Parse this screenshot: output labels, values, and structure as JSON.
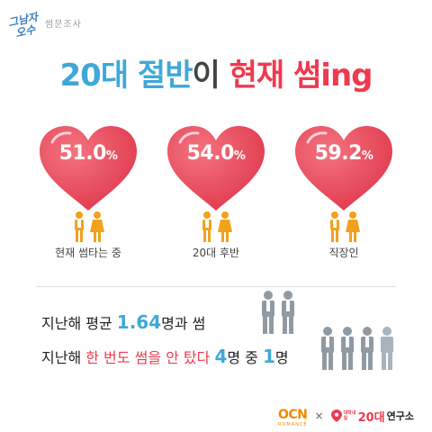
{
  "logo": {
    "script": "그남자\n오수",
    "subtitle": "썸문조사"
  },
  "title": {
    "part1": "20대 절반",
    "part2": "이 ",
    "part3": "현재 썸ing"
  },
  "colors": {
    "blue": "#3fa8d8",
    "red": "#ee3a4f",
    "heart": "#ec4f62",
    "person": "#f0a21c",
    "gray_person": "#8f9aa3"
  },
  "hearts": [
    {
      "value": "51.0",
      "unit": "%",
      "label": "현재 썸타는 중"
    },
    {
      "value": "54.0",
      "unit": "%",
      "label": "20대 후반"
    },
    {
      "value": "59.2",
      "unit": "%",
      "label": "직장인"
    }
  ],
  "stats": {
    "line1": {
      "pre": "지난해 평균 ",
      "num": "1.64",
      "post": "명과 썸"
    },
    "line2": {
      "pre": "지난해 ",
      "red": "한 번도 썸을 안 탔다",
      "mid": " ",
      "num1": "4",
      "mid2": "명 중 ",
      "num2": "1",
      "post": "명"
    }
  },
  "footer": {
    "ocn": "OCN",
    "ocn_sub": "ROMANCE",
    "times": "×",
    "lab_small": "대학내일",
    "lab_big": "20대",
    "lab_text": "연구소"
  }
}
